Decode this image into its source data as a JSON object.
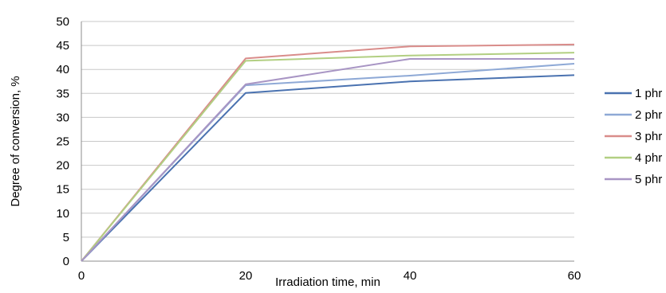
{
  "chart_data": {
    "type": "line",
    "title": "",
    "xlabel": "Irradiation time, min",
    "ylabel": "Degree of conversion, %",
    "x": [
      0,
      20,
      40,
      60
    ],
    "xticks": [
      "0",
      "20",
      "40",
      "60"
    ],
    "yticks": [
      "0",
      "5",
      "10",
      "15",
      "20",
      "25",
      "30",
      "35",
      "40",
      "45",
      "50"
    ],
    "xlim": [
      0,
      60
    ],
    "ylim": [
      0,
      50
    ],
    "grid": "horizontal",
    "legend_position": "right",
    "series": [
      {
        "name": "1 phr",
        "color": "#4a72b0",
        "values": [
          0,
          35.1,
          37.5,
          38.8
        ]
      },
      {
        "name": "2 phr",
        "color": "#8ea9d6",
        "values": [
          0,
          36.7,
          38.7,
          41.2
        ]
      },
      {
        "name": "3 phr",
        "color": "#d98c8a",
        "values": [
          0,
          42.3,
          44.8,
          45.2
        ]
      },
      {
        "name": "4 phr",
        "color": "#b2cf82",
        "values": [
          0,
          41.8,
          42.9,
          43.5
        ]
      },
      {
        "name": "5 phr",
        "color": "#a895c4",
        "values": [
          0,
          36.9,
          42.2,
          42.2
        ]
      }
    ]
  }
}
